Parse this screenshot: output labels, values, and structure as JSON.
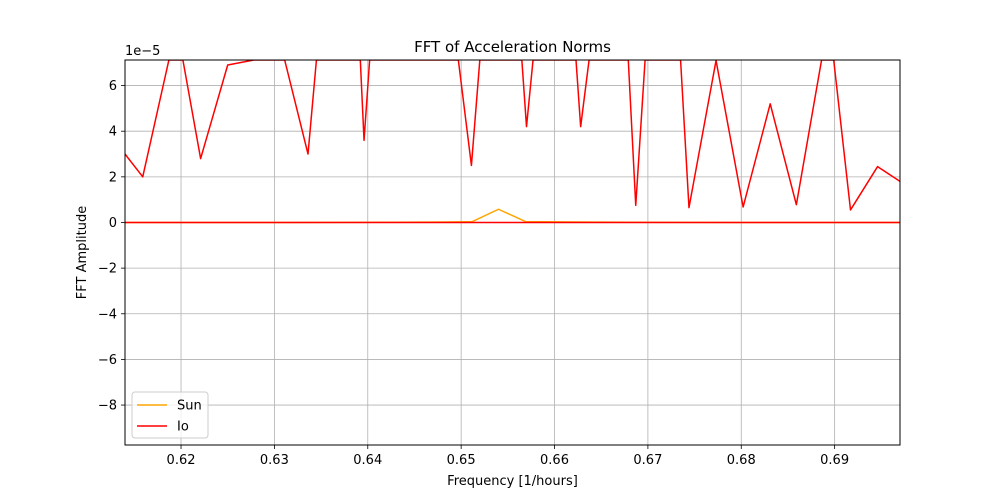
{
  "chart_data": {
    "type": "line",
    "title": "FFT of Acceleration Norms",
    "xlabel": "Frequency [1/hours]",
    "ylabel": "FFT Amplitude",
    "y_scale_label": "1e−5",
    "xlim": [
      0.614,
      0.697
    ],
    "ylim": [
      -9.75e-05,
      7.12e-05
    ],
    "y_multiplier": 1e-05,
    "grid": true,
    "legend_position": "lower-left",
    "x_ticks": [
      0.62,
      0.63,
      0.64,
      0.65,
      0.66,
      0.67,
      0.68,
      0.69
    ],
    "x_tick_labels": [
      "0.62",
      "0.63",
      "0.64",
      "0.65",
      "0.66",
      "0.67",
      "0.68",
      "0.69"
    ],
    "y_ticks": [
      6,
      4,
      2,
      0,
      -2,
      -4,
      -6,
      -8
    ],
    "y_tick_labels": [
      "6",
      "4",
      "2",
      "0",
      "−2",
      "−4",
      "−6",
      "−8"
    ],
    "series": [
      {
        "name": "Sun",
        "color": "#ffa500",
        "x": [
          0.614,
          0.6312,
          0.6369,
          0.6426,
          0.6483,
          0.6512,
          0.654,
          0.6569,
          0.6626,
          0.6683,
          0.674,
          0.6797,
          0.697
        ],
        "y": [
          0.0,
          0.0,
          5e-08,
          1e-07,
          2e-07,
          4e-07,
          5.8e-06,
          4e-07,
          2e-07,
          1e-07,
          5e-08,
          0.0,
          0.0
        ]
      },
      {
        "name": "Io",
        "color": "#ff0000",
        "x": [
          0.614,
          0.6159,
          0.6187,
          0.6202,
          0.6221,
          0.625,
          0.6278,
          0.6311,
          0.6336,
          0.6345,
          0.6392,
          0.6396,
          0.6402,
          0.6497,
          0.6511,
          0.652,
          0.6565,
          0.657,
          0.6577,
          0.6623,
          0.6628,
          0.6637,
          0.6679,
          0.6687,
          0.6697,
          0.6735,
          0.6744,
          0.6773,
          0.6802,
          0.6831,
          0.6859,
          0.6886,
          0.6899,
          0.6917,
          0.6946,
          0.697
        ],
        "y": [
          3e-05,
          2e-05,
          7.12e-05,
          7.12e-05,
          2.8e-05,
          6.9e-05,
          7.12e-05,
          7.12e-05,
          3e-05,
          7.12e-05,
          7.12e-05,
          3.6e-05,
          7.12e-05,
          7.12e-05,
          2.5e-05,
          7.12e-05,
          7.12e-05,
          4.2e-05,
          7.12e-05,
          7.12e-05,
          4.2e-05,
          7.12e-05,
          7.12e-05,
          7.5e-06,
          7.12e-05,
          7.12e-05,
          6.5e-06,
          7.1e-05,
          6.8e-06,
          5.2e-05,
          7.8e-06,
          7.12e-05,
          7.12e-05,
          5.5e-06,
          2.45e-05,
          1.8e-05
        ]
      },
      {
        "name": "",
        "color": "#ff0000",
        "x": [
          0.614,
          0.697
        ],
        "y": [
          0.0,
          0.0
        ]
      }
    ],
    "legend": [
      {
        "name": "Sun",
        "color": "#ffa500"
      },
      {
        "name": "Io",
        "color": "#ff0000"
      }
    ]
  }
}
